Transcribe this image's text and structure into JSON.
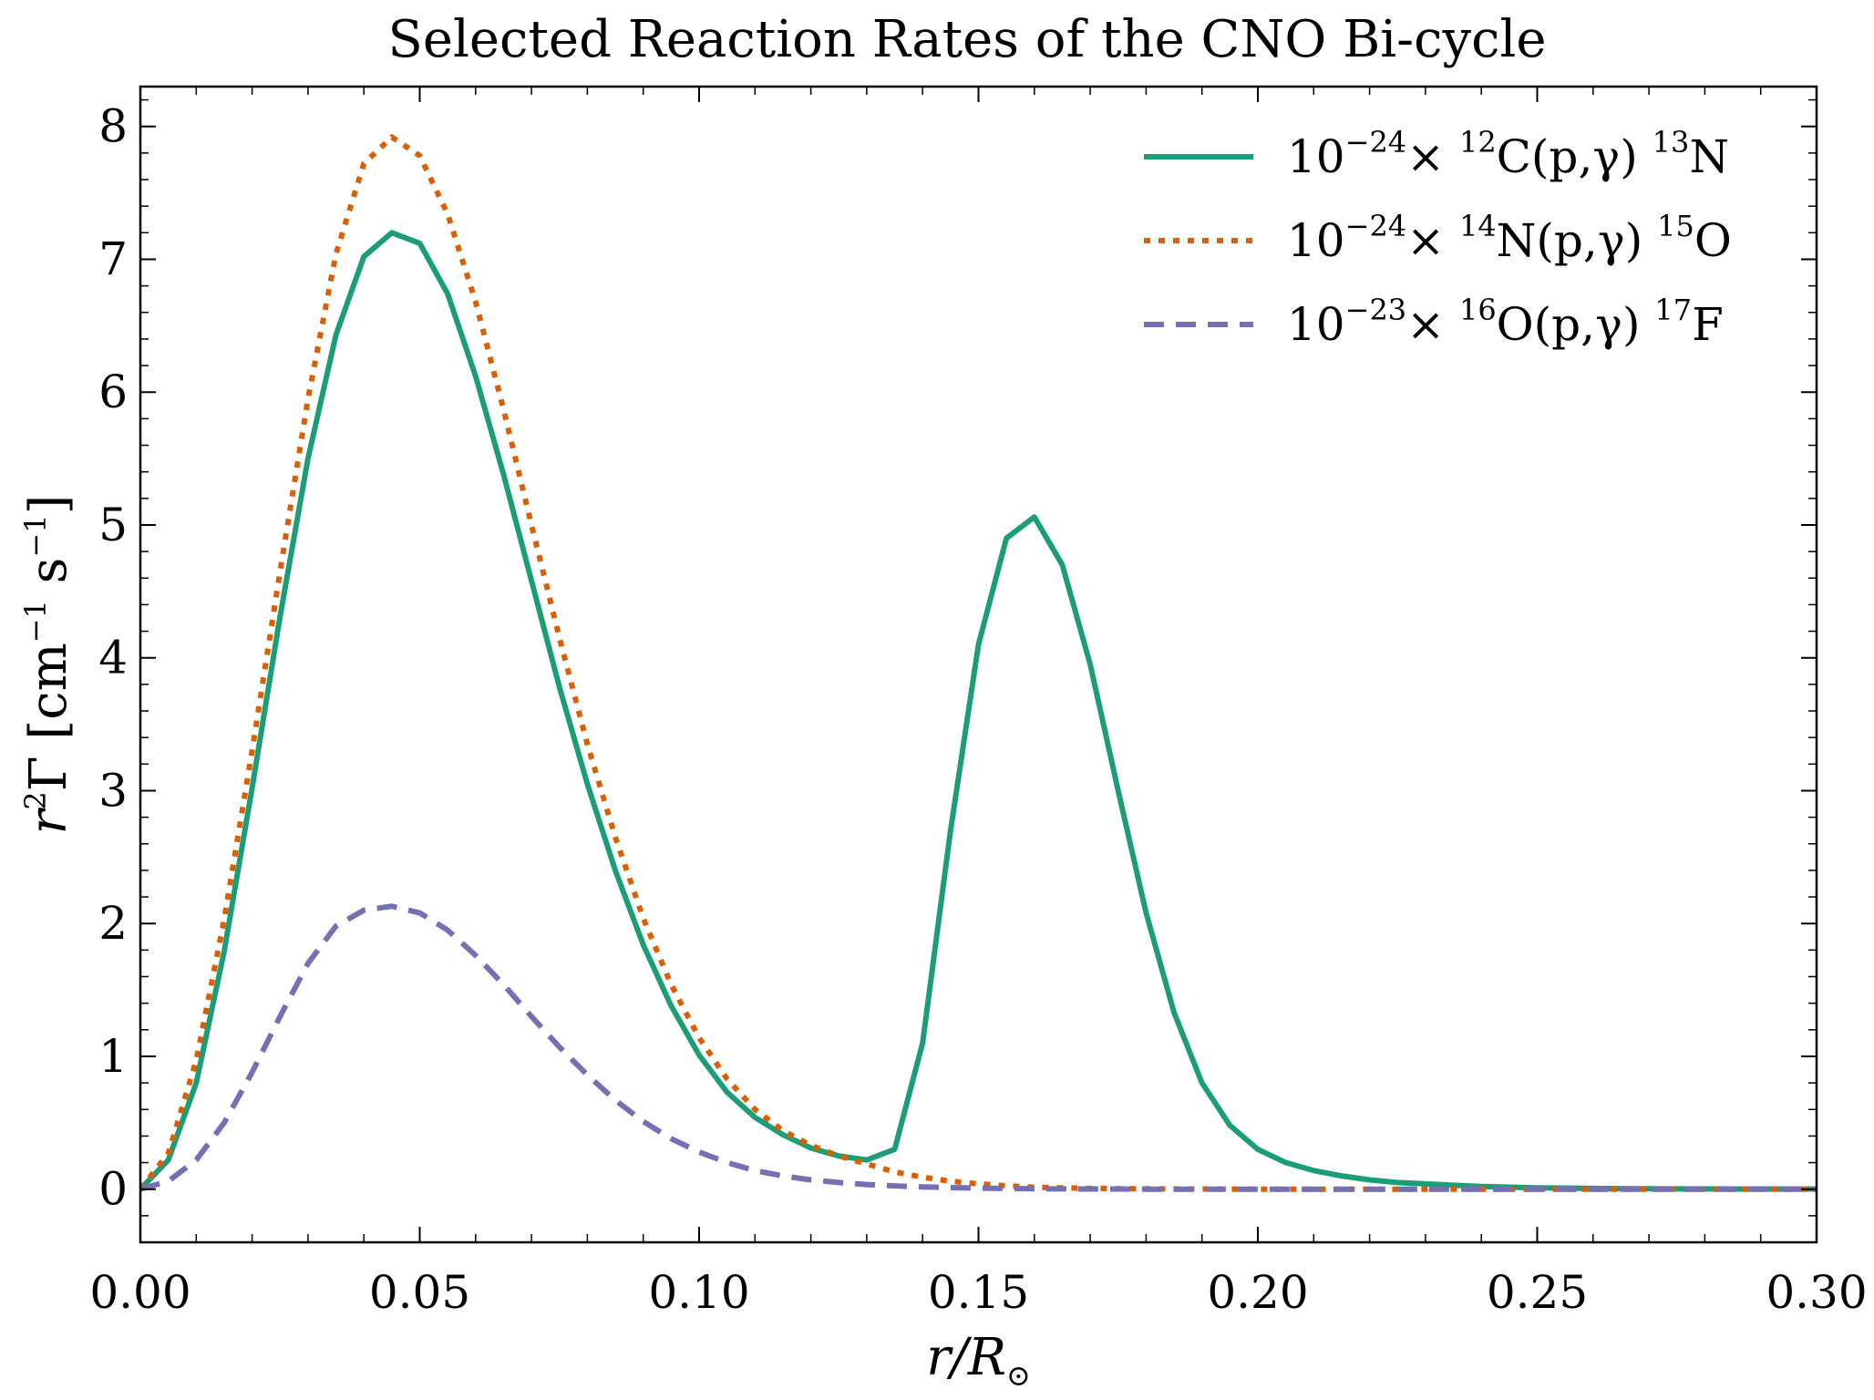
{
  "chart_data": {
    "type": "line",
    "title": "Selected Reaction Rates of the CNO Bi-cycle",
    "xlabel": {
      "main": "r/R",
      "sub": "⊙"
    },
    "ylabel": {
      "prefix": "r",
      "sup": "2",
      "rest": "Γ [cm",
      "sup1": "−1",
      "mid": " s",
      "sup2": "−1",
      "end": "]"
    },
    "xlim": [
      0.0,
      0.3
    ],
    "ylim": [
      -0.4,
      8.3
    ],
    "xticks": [
      0.0,
      0.05,
      0.1,
      0.15,
      0.2,
      0.25,
      0.3
    ],
    "xtick_labels": [
      "0.00",
      "0.05",
      "0.10",
      "0.15",
      "0.20",
      "0.25",
      "0.30"
    ],
    "yticks": [
      0,
      1,
      2,
      3,
      4,
      5,
      6,
      7,
      8
    ],
    "ytick_labels": [
      "0",
      "1",
      "2",
      "3",
      "4",
      "5",
      "6",
      "7",
      "8"
    ],
    "x_minor_step": 0.01,
    "y_minor_step": 0.2,
    "grid": false,
    "legend_position": "top-right",
    "x": [
      0.0,
      0.005,
      0.01,
      0.015,
      0.02,
      0.025,
      0.03,
      0.035,
      0.04,
      0.045,
      0.05,
      0.055,
      0.06,
      0.065,
      0.07,
      0.075,
      0.08,
      0.085,
      0.09,
      0.095,
      0.1,
      0.105,
      0.11,
      0.115,
      0.12,
      0.125,
      0.13,
      0.135,
      0.14,
      0.145,
      0.15,
      0.155,
      0.16,
      0.165,
      0.17,
      0.175,
      0.18,
      0.185,
      0.19,
      0.195,
      0.2,
      0.205,
      0.21,
      0.215,
      0.22,
      0.225,
      0.23,
      0.235,
      0.24,
      0.245,
      0.25,
      0.255,
      0.26,
      0.265,
      0.27,
      0.275,
      0.28,
      0.285,
      0.29,
      0.295,
      0.3
    ],
    "series": [
      {
        "name_parts": [
          "10",
          "−24",
          "× ",
          "12",
          "C(p,γ) ",
          "13",
          "N"
        ],
        "color": "#1b9e77",
        "style": "solid",
        "values": [
          0.0,
          0.22,
          0.8,
          1.79,
          3.02,
          4.31,
          5.5,
          6.43,
          7.02,
          7.2,
          7.12,
          6.74,
          6.12,
          5.38,
          4.58,
          3.78,
          3.05,
          2.4,
          1.84,
          1.38,
          1.01,
          0.73,
          0.54,
          0.41,
          0.31,
          0.25,
          0.22,
          0.3,
          1.1,
          2.7,
          4.1,
          4.9,
          5.06,
          4.7,
          3.95,
          3.0,
          2.08,
          1.33,
          0.8,
          0.48,
          0.3,
          0.2,
          0.14,
          0.1,
          0.07,
          0.05,
          0.04,
          0.03,
          0.02,
          0.015,
          0.01,
          0.008,
          0.006,
          0.004,
          0.003,
          0.002,
          0.002,
          0.001,
          0.001,
          0.001,
          0.001
        ]
      },
      {
        "name_parts": [
          "10",
          "−24",
          "× ",
          "14",
          "N(p,γ) ",
          "15",
          "O"
        ],
        "color": "#d95f02",
        "style": "dotted",
        "values": [
          0.0,
          0.27,
          0.97,
          2.03,
          3.3,
          4.65,
          5.95,
          7.04,
          7.72,
          7.92,
          7.78,
          7.34,
          6.68,
          5.87,
          5.0,
          4.15,
          3.35,
          2.65,
          2.04,
          1.54,
          1.14,
          0.83,
          0.6,
          0.44,
          0.33,
          0.25,
          0.19,
          0.13,
          0.09,
          0.06,
          0.04,
          0.025,
          0.015,
          0.01,
          0.006,
          0.004,
          0.003,
          0.002,
          0.001,
          0.001,
          0.0,
          0.0,
          0.0,
          0.0,
          0.0,
          0.0,
          0.0,
          0.0,
          0.0,
          0.0,
          0.0,
          0.0,
          0.0,
          0.0,
          0.0,
          0.0,
          0.0,
          0.0,
          0.0,
          0.0,
          0.0
        ]
      },
      {
        "name_parts": [
          "10",
          "−23",
          "× ",
          "16",
          "O(p,γ) ",
          "17",
          "F"
        ],
        "color": "#7570b3",
        "style": "dashed",
        "values": [
          0.0,
          0.06,
          0.22,
          0.5,
          0.88,
          1.3,
          1.7,
          1.98,
          2.1,
          2.13,
          2.08,
          1.95,
          1.76,
          1.54,
          1.3,
          1.07,
          0.86,
          0.67,
          0.51,
          0.38,
          0.28,
          0.2,
          0.14,
          0.1,
          0.07,
          0.05,
          0.035,
          0.025,
          0.017,
          0.012,
          0.008,
          0.005,
          0.003,
          0.002,
          0.001,
          0.001,
          0.0,
          0.0,
          0.0,
          0.0,
          0.0,
          0.0,
          0.0,
          0.0,
          0.0,
          0.0,
          0.0,
          0.0,
          0.0,
          0.0,
          0.0,
          0.0,
          0.0,
          0.0,
          0.0,
          0.0,
          0.0,
          0.0,
          0.0,
          0.0,
          0.0
        ]
      }
    ]
  }
}
